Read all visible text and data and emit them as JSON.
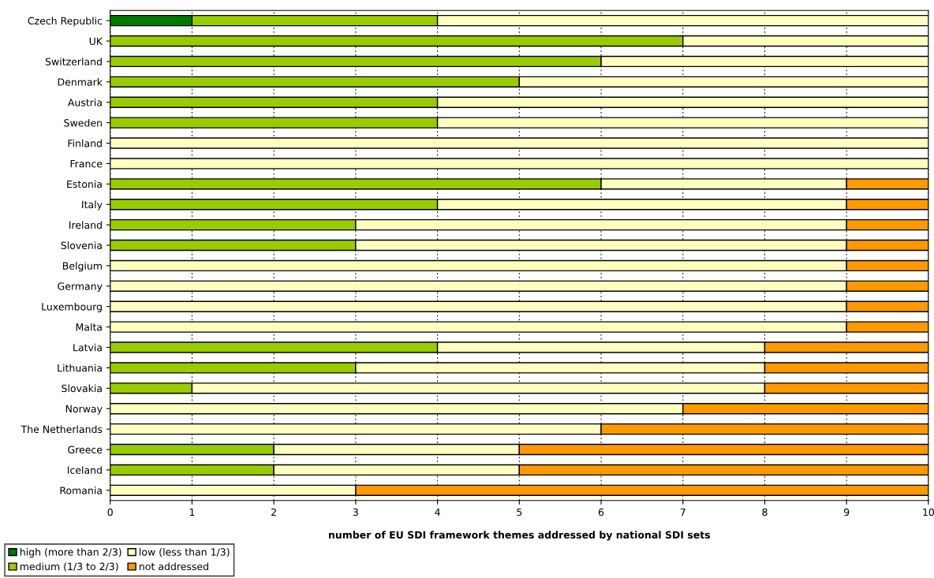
{
  "chart_data": {
    "type": "bar",
    "orientation": "horizontal",
    "stacked": true,
    "xlabel": "number of EU SDI framework themes addressed by national SDI sets",
    "categories": [
      "Czech Republic",
      "UK",
      "Switzerland",
      "Denmark",
      "Austria",
      "Sweden",
      "Finland",
      "France",
      "Estonia",
      "Italy",
      "Ireland",
      "Slovenia",
      "Belgium",
      "Germany",
      "Luxembourg",
      "Malta",
      "Latvia",
      "Lithuania",
      "Slovakia",
      "Norway",
      "The Netherlands",
      "Greece",
      "Iceland",
      "Romania"
    ],
    "series": [
      {
        "name": "high (more than 2/3)",
        "color": "#007a00",
        "values": [
          1,
          0,
          0,
          0,
          0,
          0,
          0,
          0,
          0,
          0,
          0,
          0,
          0,
          0,
          0,
          0,
          0,
          0,
          0,
          0,
          0,
          0,
          0,
          0
        ]
      },
      {
        "name": "medium (1/3 to 2/3)",
        "color": "#99cc00",
        "values": [
          3,
          7,
          6,
          5,
          4,
          4,
          0,
          0,
          6,
          4,
          3,
          3,
          0,
          0,
          0,
          0,
          4,
          3,
          1,
          0,
          0,
          2,
          2,
          0
        ]
      },
      {
        "name": "low (less than 1/3)",
        "color": "#ffffc0",
        "values": [
          6,
          3,
          4,
          5,
          6,
          6,
          10,
          10,
          3,
          5,
          6,
          6,
          9,
          9,
          9,
          9,
          4,
          5,
          7,
          7,
          6,
          3,
          3,
          3
        ]
      },
      {
        "name": "not addressed",
        "color": "#ff9900",
        "values": [
          0,
          0,
          0,
          0,
          0,
          0,
          0,
          0,
          1,
          1,
          1,
          1,
          1,
          1,
          1,
          1,
          2,
          2,
          2,
          3,
          4,
          5,
          5,
          7
        ]
      }
    ],
    "xlim": [
      0,
      10
    ],
    "xticks": [
      0,
      1,
      2,
      3,
      4,
      5,
      6,
      7,
      8,
      9,
      10
    ],
    "grid": "x",
    "legend": "bottom left"
  }
}
